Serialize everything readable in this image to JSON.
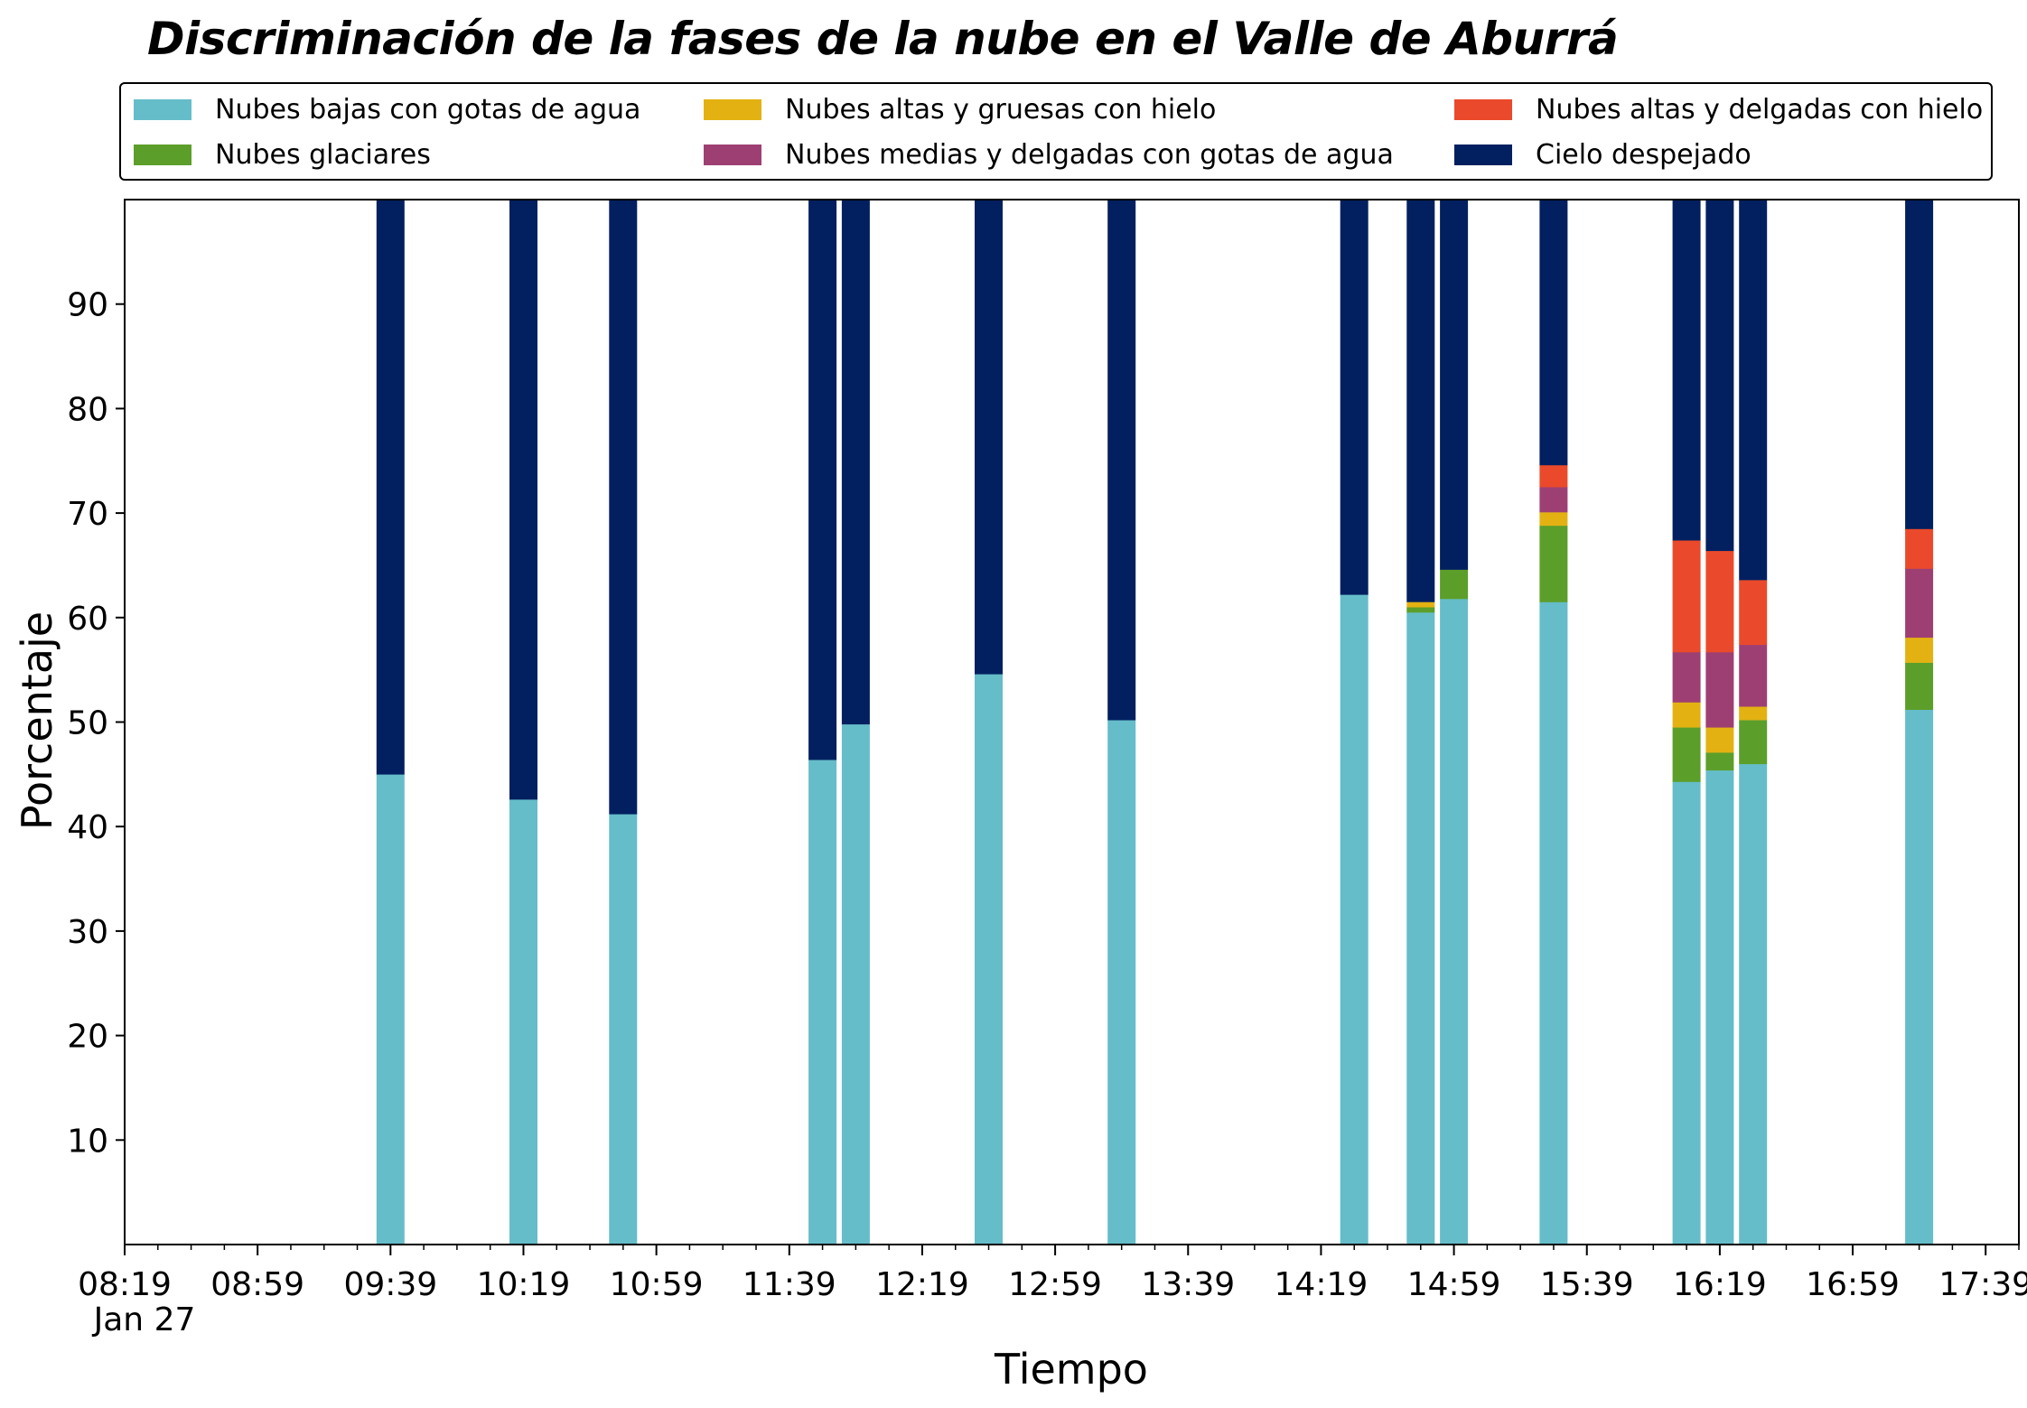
{
  "chart_data": {
    "type": "bar",
    "stacked": true,
    "title": "Discriminación de la fases de la nube en el Valle de Aburrá",
    "xlabel": "Tiempo",
    "ylabel": "Porcentaje",
    "ylim": [
      0,
      100
    ],
    "yticks": [
      10,
      20,
      30,
      40,
      50,
      60,
      70,
      80,
      90
    ],
    "x_range": [
      "08:19",
      "17:49"
    ],
    "x_date_label": "Jan 27",
    "xticks": [
      "08:19",
      "08:59",
      "09:39",
      "10:19",
      "10:59",
      "11:39",
      "12:19",
      "12:59",
      "13:39",
      "14:19",
      "14:59",
      "15:39",
      "16:19",
      "16:59",
      "17:39"
    ],
    "legend_position": "top",
    "grid": false,
    "times": [
      "09:39",
      "10:19",
      "10:49",
      "11:49",
      "11:59",
      "12:39",
      "13:19",
      "14:29",
      "14:49",
      "14:59",
      "15:29",
      "16:09",
      "16:19",
      "16:29",
      "17:19"
    ],
    "series": [
      {
        "name": "Nubes bajas con gotas de agua",
        "color": "#65BDC9",
        "values": [
          45.0,
          42.6,
          41.2,
          46.4,
          49.8,
          54.6,
          50.2,
          62.2,
          60.5,
          61.8,
          61.5,
          44.3,
          45.4,
          46.0,
          51.2
        ]
      },
      {
        "name": "Nubes glaciares",
        "color": "#5C9E2A",
        "values": [
          0,
          0,
          0,
          0,
          0,
          0,
          0,
          0,
          0.5,
          2.8,
          7.3,
          5.2,
          1.7,
          4.2,
          4.5
        ]
      },
      {
        "name": "Nubes altas y gruesas con hielo",
        "color": "#E3B212",
        "values": [
          0,
          0,
          0,
          0,
          0,
          0,
          0,
          0,
          0.5,
          0,
          1.3,
          2.4,
          2.4,
          1.3,
          2.4
        ]
      },
      {
        "name": "Nubes medias y delgadas con gotas de agua",
        "color": "#9E3F74",
        "values": [
          0,
          0,
          0,
          0,
          0,
          0,
          0,
          0,
          0,
          0,
          2.4,
          4.8,
          7.2,
          5.9,
          6.6
        ]
      },
      {
        "name": "Nubes altas y delgadas con hielo",
        "color": "#EA4A2B",
        "values": [
          0,
          0,
          0,
          0,
          0,
          0,
          0,
          0,
          0,
          0,
          2.1,
          10.7,
          9.7,
          6.2,
          3.8
        ]
      },
      {
        "name": "Cielo despejado",
        "color": "#02205F",
        "values": [
          55.0,
          57.4,
          58.8,
          53.6,
          50.2,
          45.4,
          49.8,
          37.8,
          38.5,
          35.4,
          25.4,
          32.6,
          33.6,
          36.4,
          31.5
        ]
      }
    ]
  },
  "legend": {
    "items": [
      {
        "label": "Nubes bajas con gotas de agua",
        "color": "#65BDC9"
      },
      {
        "label": "Nubes glaciares",
        "color": "#5C9E2A"
      },
      {
        "label": "Nubes altas y gruesas con hielo",
        "color": "#E3B212"
      },
      {
        "label": "Nubes medias y delgadas con gotas de agua",
        "color": "#9E3F74"
      },
      {
        "label": "Nubes altas y delgadas con hielo",
        "color": "#EA4A2B"
      },
      {
        "label": "Cielo despejado",
        "color": "#02205F"
      }
    ]
  }
}
